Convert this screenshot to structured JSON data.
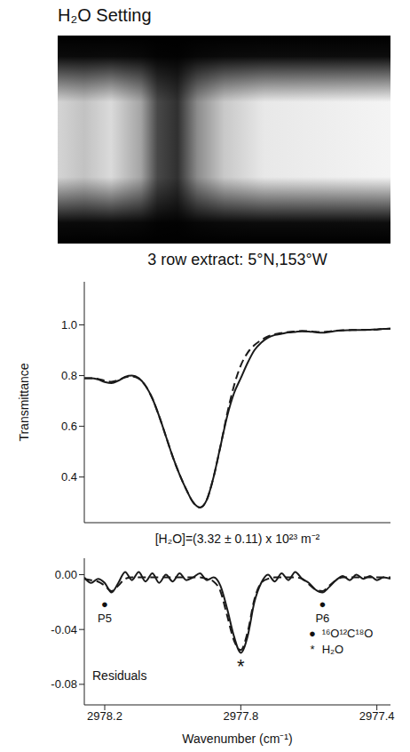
{
  "title": "H₂O Setting",
  "chart_data": [
    {
      "type": "line",
      "title": "3 row extract: 5°N,153°W",
      "y_label": "Transmittance",
      "x": [
        2978.26,
        2978.24,
        2978.22,
        2978.2,
        2978.18,
        2978.16,
        2978.14,
        2978.12,
        2978.1,
        2978.08,
        2978.06,
        2978.04,
        2978.02,
        2978.0,
        2977.98,
        2977.96,
        2977.94,
        2977.92,
        2977.9,
        2977.88,
        2977.86,
        2977.84,
        2977.82,
        2977.8,
        2977.78,
        2977.76,
        2977.74,
        2977.72,
        2977.7,
        2977.68,
        2977.66,
        2977.64,
        2977.62,
        2977.6,
        2977.58,
        2977.56,
        2977.54,
        2977.52,
        2977.5,
        2977.48,
        2977.46,
        2977.44,
        2977.42,
        2977.4,
        2977.38,
        2977.36
      ],
      "series": [
        {
          "color": "#1a1a1a",
          "line_style": "solid",
          "values": [
            0.79,
            0.79,
            0.785,
            0.775,
            0.77,
            0.78,
            0.795,
            0.8,
            0.79,
            0.76,
            0.71,
            0.64,
            0.56,
            0.48,
            0.41,
            0.35,
            0.3,
            0.28,
            0.31,
            0.4,
            0.52,
            0.64,
            0.73,
            0.79,
            0.85,
            0.9,
            0.93,
            0.95,
            0.96,
            0.965,
            0.97,
            0.972,
            0.975,
            0.974,
            0.971,
            0.969,
            0.972,
            0.976,
            0.978,
            0.979,
            0.98,
            0.98,
            0.981,
            0.982,
            0.984,
            0.985
          ]
        },
        {
          "color": "#1a1a1a",
          "line_style": "dashed",
          "values": [
            0.79,
            0.79,
            0.787,
            0.78,
            0.776,
            0.782,
            0.793,
            0.797,
            0.788,
            0.76,
            0.71,
            0.64,
            0.56,
            0.48,
            0.41,
            0.35,
            0.3,
            0.28,
            0.31,
            0.4,
            0.52,
            0.65,
            0.76,
            0.84,
            0.89,
            0.92,
            0.94,
            0.955,
            0.963,
            0.968,
            0.972,
            0.974,
            0.976,
            0.975,
            0.973,
            0.972,
            0.974,
            0.977,
            0.979,
            0.98,
            0.98,
            0.981,
            0.981,
            0.982,
            0.984,
            0.985
          ]
        }
      ],
      "xlim": [
        2978.26,
        2977.36
      ],
      "ylim": [
        0.22,
        1.17
      ],
      "yticks": [
        0.4,
        0.6,
        0.8,
        {
          "value": 1,
          "label": "1.0"
        }
      ],
      "grid": false,
      "tick_labels": "y"
    },
    {
      "type": "line",
      "x_label": "Wavenumber (cm⁻¹)",
      "annotations": [
        "[H₂O]=(3.32 ± 0.11) x 10²³ m⁻²",
        "Residuals"
      ],
      "x": [
        2978.26,
        2978.24,
        2978.22,
        2978.2,
        2978.18,
        2978.16,
        2978.14,
        2978.12,
        2978.1,
        2978.08,
        2978.06,
        2978.04,
        2978.02,
        2978.0,
        2977.98,
        2977.96,
        2977.94,
        2977.92,
        2977.9,
        2977.88,
        2977.86,
        2977.84,
        2977.82,
        2977.8,
        2977.78,
        2977.76,
        2977.74,
        2977.72,
        2977.7,
        2977.68,
        2977.66,
        2977.64,
        2977.62,
        2977.6,
        2977.58,
        2977.56,
        2977.54,
        2977.52,
        2977.5,
        2977.48,
        2977.46,
        2977.44,
        2977.42,
        2977.4,
        2977.38,
        2977.36
      ],
      "series": [
        {
          "color": "#1a1a1a",
          "line_style": "solid",
          "values": [
            -0.002,
            -0.006,
            -0.003,
            -0.006,
            -0.013,
            -0.006,
            0.002,
            -0.004,
            0.002,
            -0.005,
            0.001,
            -0.006,
            0.0,
            -0.005,
            0.001,
            -0.004,
            -0.002,
            0.001,
            -0.004,
            -0.002,
            -0.008,
            -0.025,
            -0.045,
            -0.057,
            -0.045,
            -0.02,
            -0.006,
            0.0,
            -0.005,
            0.001,
            -0.004,
            0.002,
            -0.003,
            -0.006,
            -0.011,
            -0.013,
            -0.009,
            -0.004,
            -0.001,
            -0.004,
            0.0,
            -0.003,
            -0.001,
            -0.004,
            -0.002,
            -0.003
          ]
        },
        {
          "color": "#1a1a1a",
          "line_style": "dashed",
          "values": [
            -0.003,
            -0.004,
            -0.005,
            -0.008,
            -0.012,
            -0.008,
            -0.003,
            -0.002,
            -0.002,
            -0.002,
            -0.002,
            -0.002,
            -0.002,
            -0.002,
            -0.002,
            -0.002,
            -0.002,
            -0.002,
            -0.003,
            -0.005,
            -0.012,
            -0.03,
            -0.048,
            -0.055,
            -0.042,
            -0.018,
            -0.006,
            -0.003,
            -0.002,
            -0.002,
            -0.002,
            -0.002,
            -0.003,
            -0.007,
            -0.011,
            -0.012,
            -0.008,
            -0.004,
            -0.002,
            -0.002,
            -0.002,
            -0.002,
            -0.002,
            -0.002,
            -0.002,
            -0.002
          ]
        }
      ],
      "markers": [
        {
          "label": "P5",
          "symbol": "●",
          "x": 2978.2,
          "y": -0.021
        },
        {
          "symbol": "*",
          "x": 2977.8,
          "y": -0.066
        },
        {
          "label": "P6",
          "symbol": "●",
          "x": 2977.56,
          "y": -0.021
        }
      ],
      "marker_legend": [
        {
          "symbol": "●",
          "label": "¹⁶O¹²C¹⁸O"
        },
        {
          "symbol": "*",
          "label": "H₂O"
        }
      ],
      "xlim": [
        2978.26,
        2977.36
      ],
      "ylim": [
        -0.095,
        0.012
      ],
      "xticks": [
        2978.2,
        2977.8,
        2977.4
      ],
      "yticks": [
        {
          "value": 0,
          "label": "0.00"
        },
        {
          "value": -0.04,
          "label": "-0.04"
        },
        {
          "value": -0.08,
          "label": "-0.08"
        }
      ],
      "grid": false
    }
  ]
}
